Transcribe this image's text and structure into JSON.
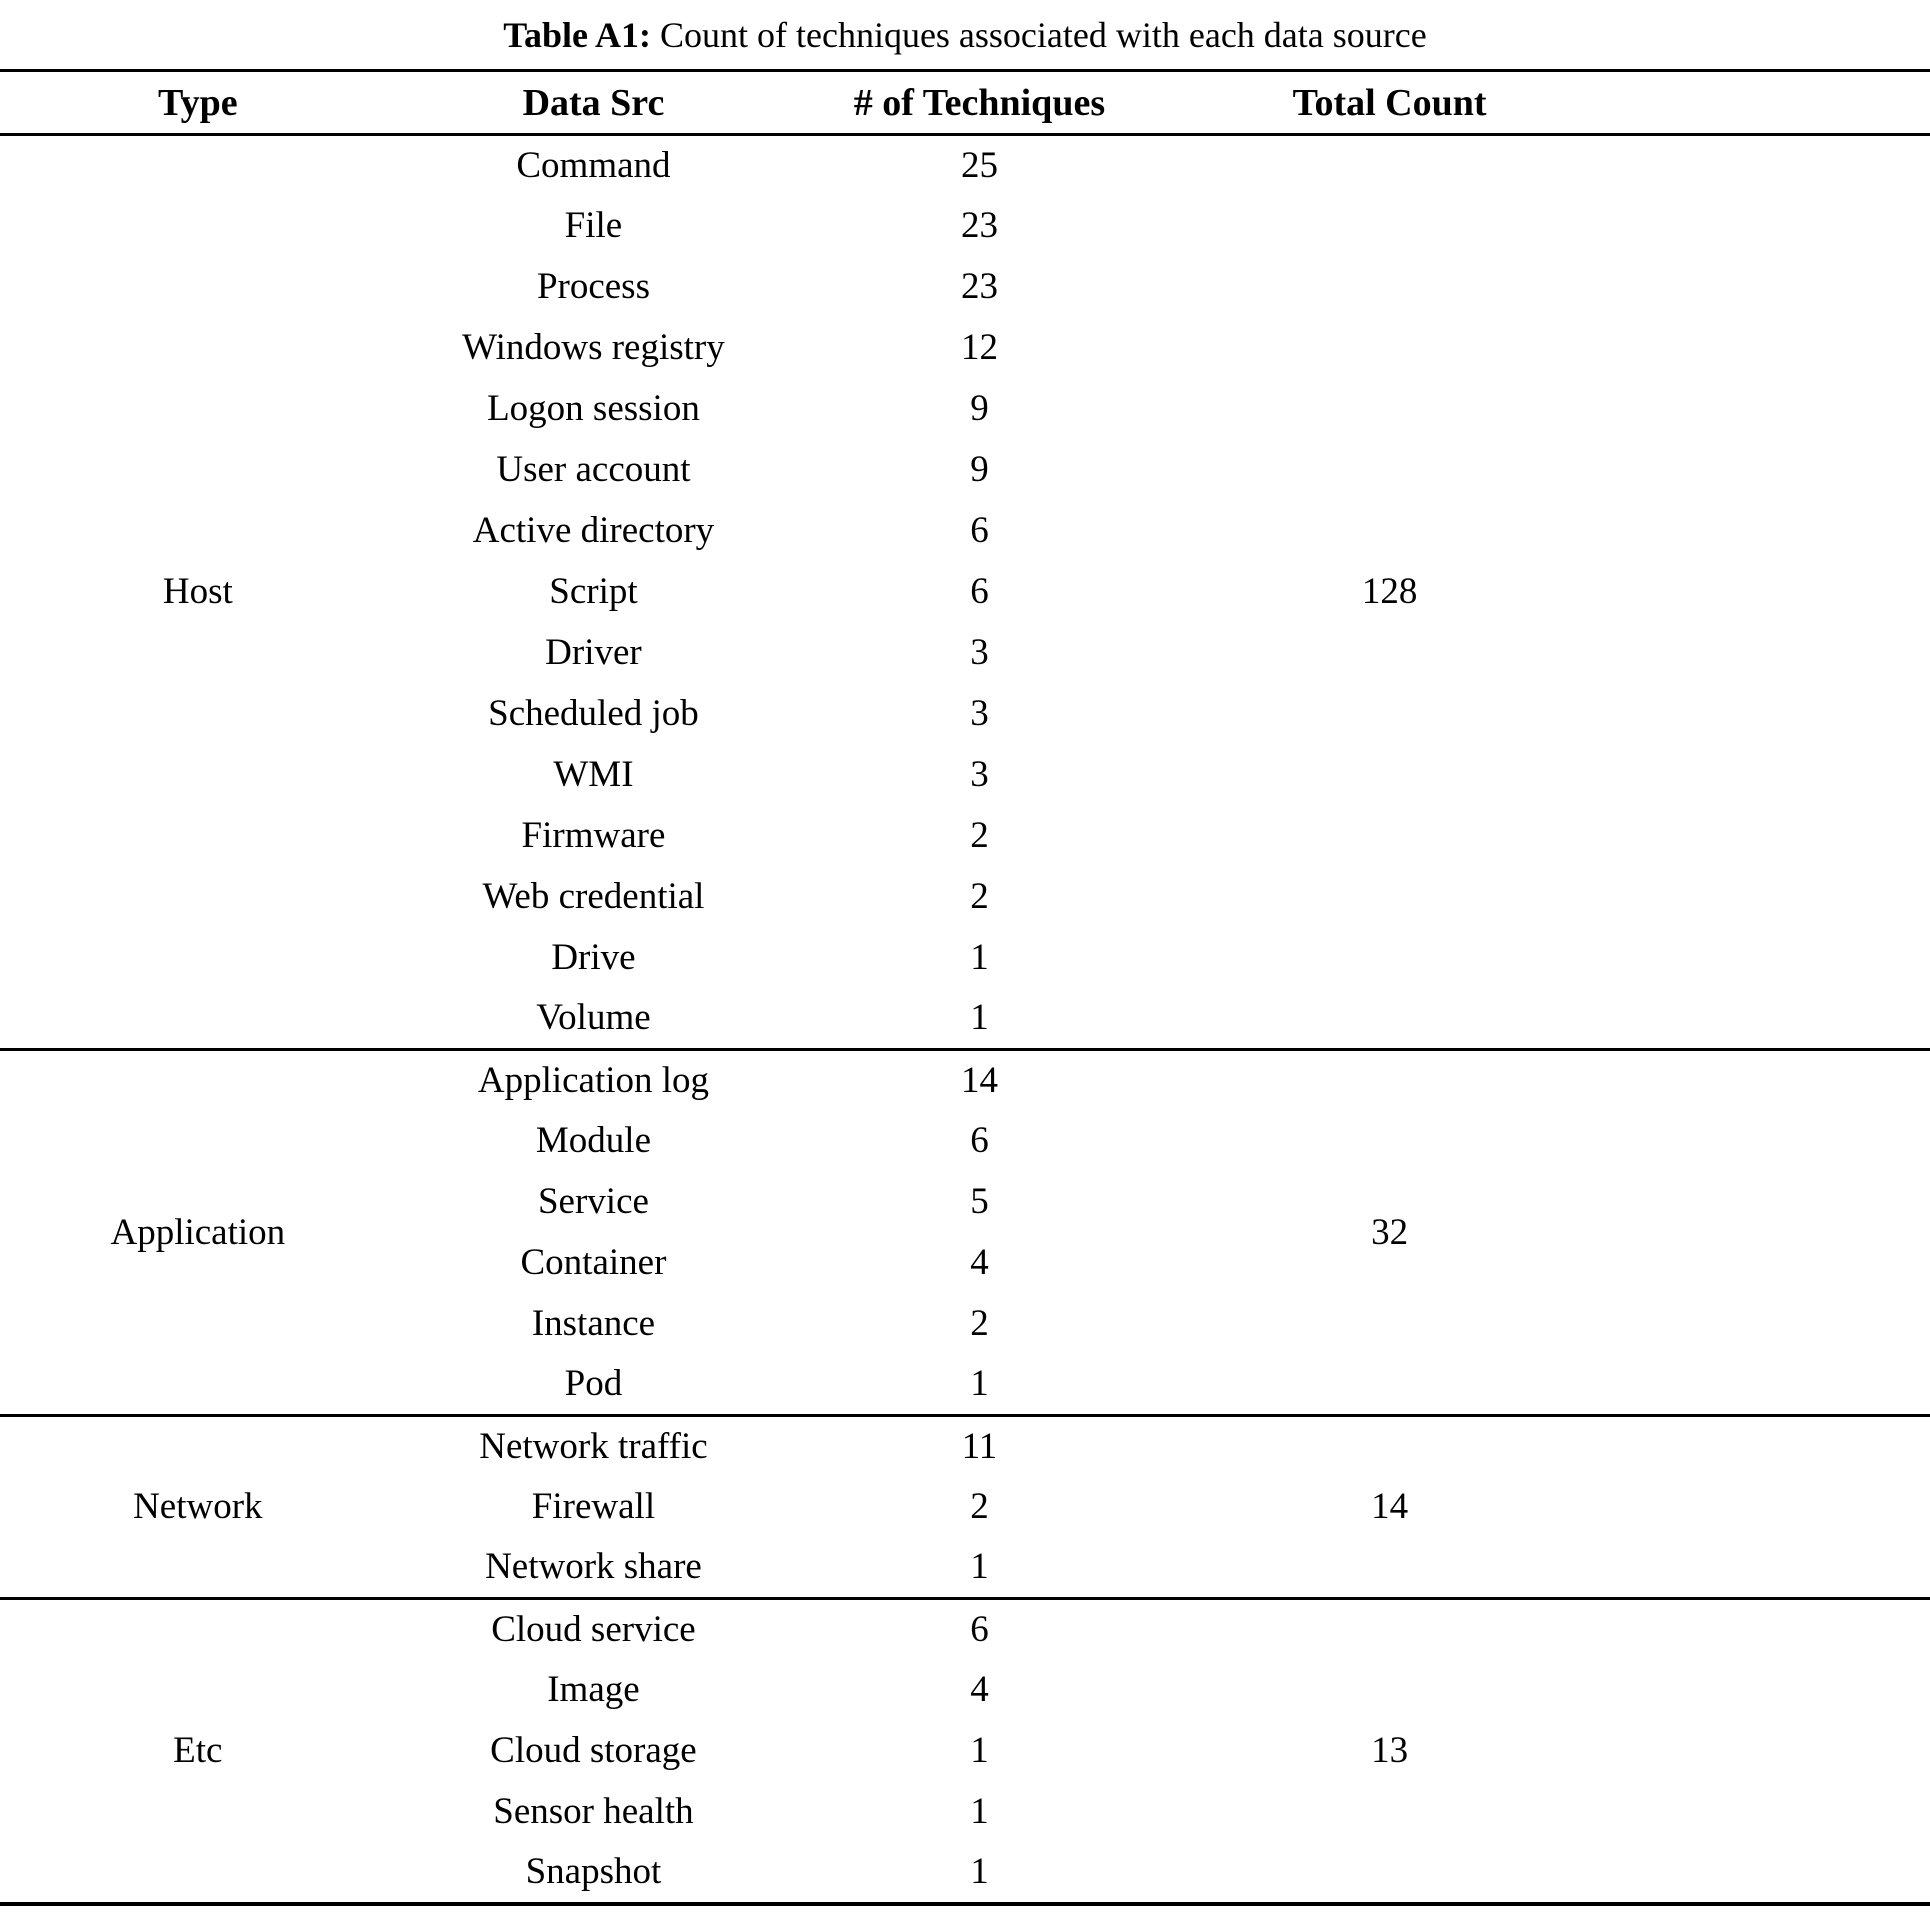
{
  "title": {
    "label": "Table A1:",
    "text": " Count of techniques associated with each data source"
  },
  "table": {
    "columns": [
      "Type",
      "Data Src",
      "# of Techniques",
      "Total Count"
    ],
    "groups": [
      {
        "type": "Host",
        "total": "128",
        "rows": [
          [
            "Command",
            "25"
          ],
          [
            "File",
            "23"
          ],
          [
            "Process",
            "23"
          ],
          [
            "Windows registry",
            "12"
          ],
          [
            "Logon session",
            "9"
          ],
          [
            "User account",
            "9"
          ],
          [
            "Active directory",
            "6"
          ],
          [
            "Script",
            "6"
          ],
          [
            "Driver",
            "3"
          ],
          [
            "Scheduled job",
            "3"
          ],
          [
            "WMI",
            "3"
          ],
          [
            "Firmware",
            "2"
          ],
          [
            "Web credential",
            "2"
          ],
          [
            "Drive",
            "1"
          ],
          [
            "Volume",
            "1"
          ]
        ]
      },
      {
        "type": "Application",
        "total": "32",
        "rows": [
          [
            "Application log",
            "14"
          ],
          [
            "Module",
            "6"
          ],
          [
            "Service",
            "5"
          ],
          [
            "Container",
            "4"
          ],
          [
            "Instance",
            "2"
          ],
          [
            "Pod",
            "1"
          ]
        ]
      },
      {
        "type": "Network",
        "total": "14",
        "rows": [
          [
            "Network traffic",
            "11"
          ],
          [
            "Firewall",
            "2"
          ],
          [
            "Network share",
            "1"
          ]
        ]
      },
      {
        "type": "Etc",
        "total": "13",
        "rows": [
          [
            "Cloud service",
            "6"
          ],
          [
            "Image",
            "4"
          ],
          [
            "Cloud storage",
            "1"
          ],
          [
            "Sensor health",
            "1"
          ],
          [
            "Snapshot",
            "1"
          ]
        ]
      }
    ]
  }
}
